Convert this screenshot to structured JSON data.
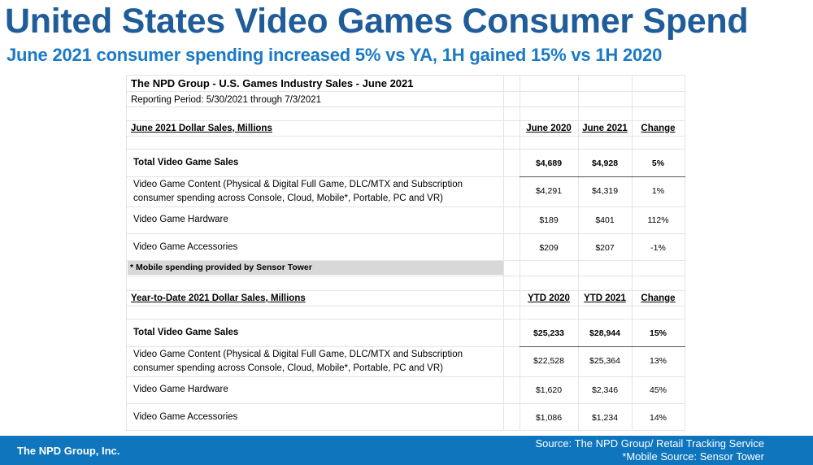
{
  "header": {
    "title": "United States Video Games Consumer Spend",
    "subtitle": "June 2021 consumer spending increased 5% vs YA, 1H gained 15% vs 1H 2020"
  },
  "table": {
    "title": "The NPD Group - U.S. Games Industry Sales - June 2021",
    "period": "Reporting Period: 5/30/2021 through 7/3/2021",
    "june": {
      "heading": "June 2021 Dollar Sales, Millions",
      "col1": "June 2020",
      "col2": "June 2021",
      "col3": "Change",
      "total": {
        "label": "Total Video Game Sales",
        "v1": "$4,689",
        "v2": "$4,928",
        "chg": "5%"
      },
      "content": {
        "label1": "Video Game Content (Physical & Digital Full Game, DLC/MTX and Subscription",
        "label2": "consumer spending across Console, Cloud, Mobile*, Portable, PC and VR)",
        "v1": "$4,291",
        "v2": "$4,319",
        "chg": "1%"
      },
      "hardware": {
        "label": "Video Game Hardware",
        "v1": "$189",
        "v2": "$401",
        "chg": "112%"
      },
      "accessories": {
        "label": "Video Game Accessories",
        "v1": "$209",
        "v2": "$207",
        "chg": "-1%"
      }
    },
    "note": "* Mobile spending provided by Sensor Tower",
    "ytd": {
      "heading": "Year-to-Date 2021 Dollar Sales, Millions",
      "col1": "YTD 2020",
      "col2": "YTD 2021",
      "col3": "Change",
      "total": {
        "label": "Total Video Game Sales",
        "v1": "$25,233",
        "v2": "$28,944",
        "chg": "15%"
      },
      "content": {
        "label1": "Video Game Content (Physical & Digital Full Game, DLC/MTX and Subscription",
        "label2": "consumer spending across Console, Cloud, Mobile*, Portable, PC and VR)",
        "v1": "$22,528",
        "v2": "$25,364",
        "chg": "13%"
      },
      "hardware": {
        "label": "Video Game Hardware",
        "v1": "$1,620",
        "v2": "$2,346",
        "chg": "45%"
      },
      "accessories": {
        "label": "Video Game Accessories",
        "v1": "$1,086",
        "v2": "$1,234",
        "chg": "14%"
      }
    }
  },
  "footer": {
    "company": "The NPD Group, Inc.",
    "source1": "Source: The NPD Group/ Retail Tracking Service",
    "source2": "*Mobile Source: Sensor Tower"
  },
  "colors": {
    "title": "#1f5c99",
    "subtitle": "#1a7ac6",
    "footer_bg": "#0f75bd"
  }
}
